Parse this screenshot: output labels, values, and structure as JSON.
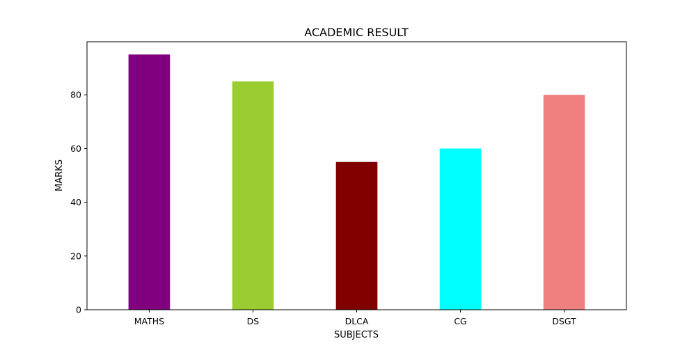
{
  "chart_data": {
    "type": "bar",
    "title": "ACADEMIC RESULT",
    "xlabel": "SUBJECTS",
    "ylabel": "MARKS",
    "categories": [
      "MATHS",
      "DS",
      "DLCA",
      "CG",
      "DSGT"
    ],
    "values": [
      95,
      85,
      55,
      60,
      80
    ],
    "colors": [
      "#800080",
      "#9acd32",
      "#800000",
      "#00ffff",
      "#f08080"
    ],
    "ylim": [
      0,
      99.75
    ],
    "yticks": [
      0,
      20,
      40,
      60,
      80
    ],
    "grid": false,
    "legend": "none"
  }
}
